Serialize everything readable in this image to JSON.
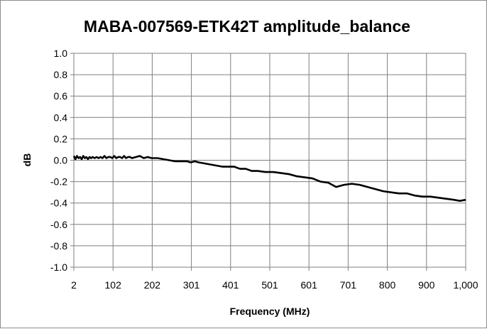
{
  "chart_data": {
    "type": "line",
    "title": "MABA-007569-ETK42T amplitude_balance",
    "xlabel": "Frequency (MHz)",
    "ylabel": "dB",
    "xlim": [
      2,
      1000
    ],
    "ylim": [
      -1.0,
      1.0
    ],
    "x_tick_labels": [
      "2",
      "102",
      "202",
      "301",
      "401",
      "501",
      "601",
      "701",
      "800",
      "900",
      "1,000"
    ],
    "y_tick_labels": [
      "1.0",
      "0.8",
      "0.6",
      "0.4",
      "0.2",
      "0.0",
      "-0.2",
      "-0.4",
      "-0.6",
      "-0.8",
      "-1.0"
    ],
    "grid": true,
    "legend": "none",
    "line_color": "#000000",
    "series": [
      {
        "x": [
          2,
          6,
          10,
          14,
          18,
          22,
          26,
          30,
          34,
          38,
          42,
          46,
          50,
          55,
          60,
          65,
          70,
          75,
          80,
          85,
          90,
          95,
          100,
          105,
          110,
          115,
          120,
          125,
          130,
          135,
          140,
          145,
          150,
          160,
          170,
          180,
          190,
          200,
          215,
          230,
          245,
          260,
          275,
          290,
          300,
          310,
          320,
          335,
          350,
          365,
          380,
          395,
          410,
          425,
          440,
          455,
          470,
          490,
          510,
          530,
          550,
          570,
          590,
          610,
          630,
          650,
          670,
          690,
          710,
          730,
          750,
          770,
          790,
          810,
          830,
          850,
          870,
          890,
          910,
          930,
          950,
          970,
          985,
          1000
        ],
        "y": [
          0.04,
          0.01,
          0.04,
          0.02,
          0.03,
          0.01,
          0.04,
          0.02,
          0.03,
          0.01,
          0.03,
          0.02,
          0.03,
          0.02,
          0.03,
          0.02,
          0.03,
          0.02,
          0.04,
          0.02,
          0.03,
          0.03,
          0.02,
          0.04,
          0.02,
          0.03,
          0.03,
          0.02,
          0.04,
          0.02,
          0.03,
          0.03,
          0.02,
          0.03,
          0.04,
          0.02,
          0.03,
          0.02,
          0.02,
          0.01,
          0.0,
          -0.01,
          -0.01,
          -0.01,
          -0.02,
          -0.01,
          -0.02,
          -0.03,
          -0.04,
          -0.05,
          -0.06,
          -0.06,
          -0.06,
          -0.08,
          -0.08,
          -0.1,
          -0.1,
          -0.11,
          -0.11,
          -0.12,
          -0.13,
          -0.15,
          -0.16,
          -0.17,
          -0.2,
          -0.21,
          -0.25,
          -0.23,
          -0.22,
          -0.23,
          -0.25,
          -0.27,
          -0.29,
          -0.3,
          -0.31,
          -0.31,
          -0.33,
          -0.34,
          -0.34,
          -0.35,
          -0.36,
          -0.37,
          -0.38,
          -0.37
        ]
      }
    ]
  }
}
